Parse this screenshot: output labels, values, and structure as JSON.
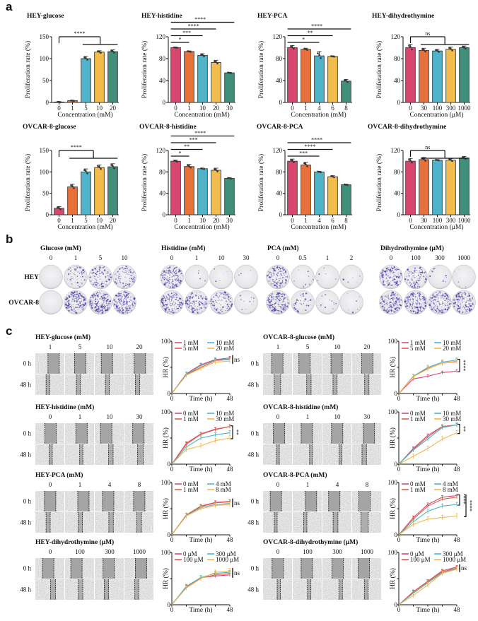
{
  "panel_labels": [
    "a",
    "b",
    "c"
  ],
  "colors": {
    "bars": [
      "#d9476f",
      "#e8703a",
      "#4fb3c9",
      "#f2bd4c",
      "#3f8f7a"
    ],
    "lines": [
      "#d6487a",
      "#e0603c",
      "#4db3c9",
      "#f1b84a"
    ],
    "stain": "#4b3fae"
  },
  "chart_data": [
    {
      "type": "bar",
      "title": "HEY-glucose",
      "xlabel": "Concentration (mM)",
      "ylabel": "Proliferation rate (%)",
      "categories": [
        "0",
        "1",
        "5",
        "10",
        "20"
      ],
      "values": [
        1,
        4,
        100,
        115,
        116
      ],
      "errors": [
        1,
        1,
        5,
        3,
        4
      ],
      "ylim": [
        0,
        150
      ],
      "yticks": [
        "0",
        "50",
        "100",
        "150"
      ],
      "comparison": {
        "type": "bracket",
        "control": 0,
        "group": [
          2,
          4
        ],
        "label": "****"
      }
    },
    {
      "type": "bar",
      "title": "HEY-histidine",
      "xlabel": "Concentration (mM)",
      "ylabel": "Proliferation rate (%)",
      "categories": [
        "0",
        "1",
        "10",
        "20",
        "30"
      ],
      "values": [
        100,
        93,
        86,
        73,
        54
      ],
      "errors": [
        1,
        1,
        3,
        4,
        1
      ],
      "ylim": [
        0,
        120
      ],
      "yticks": [
        "0",
        "40",
        "80",
        "120"
      ],
      "comparison": {
        "type": "pairwise",
        "pairs": [
          {
            "to": 1,
            "label": "*"
          },
          {
            "to": 2,
            "label": "***"
          },
          {
            "to": 3,
            "label": "****"
          },
          {
            "to": 4,
            "label": "****"
          }
        ]
      }
    },
    {
      "type": "bar",
      "title": "HEY-PCA",
      "xlabel": "Concentration (mM)",
      "ylabel": "Proliferation rate (%)",
      "categories": [
        "0",
        "1",
        "4",
        "6",
        "8"
      ],
      "values": [
        100,
        97,
        85,
        84,
        39
      ],
      "errors": [
        4,
        2,
        8,
        1,
        3
      ],
      "ylim": [
        0,
        120
      ],
      "yticks": [
        "0",
        "40",
        "80",
        "120"
      ],
      "comparison": {
        "type": "pairwise",
        "pairs": [
          {
            "to": 2,
            "label": "*"
          },
          {
            "to": 3,
            "label": "**"
          },
          {
            "to": 4,
            "label": "****"
          }
        ]
      }
    },
    {
      "type": "bar",
      "title": "HEY-dihydrothymine",
      "xlabel": "Concentration (μM)",
      "ylabel": "Proliferation rate (%)",
      "categories": [
        "0",
        "30",
        "100",
        "300",
        "1000"
      ],
      "values": [
        100,
        95,
        94,
        97,
        100
      ],
      "errors": [
        6,
        4,
        3,
        4,
        3
      ],
      "ylim": [
        0,
        120
      ],
      "yticks": [
        "0",
        "40",
        "80",
        "120"
      ],
      "comparison": {
        "type": "bracket",
        "control": 0,
        "group": [
          1,
          4
        ],
        "label": "ns"
      }
    },
    {
      "type": "bar",
      "title": "OVCAR-8-glucose",
      "xlabel": "Concentration (mM)",
      "ylabel": "Proliferation rate (%)",
      "categories": [
        "0",
        "1",
        "5",
        "10",
        "20"
      ],
      "values": [
        15,
        65,
        100,
        110,
        112
      ],
      "errors": [
        4,
        6,
        7,
        6,
        7
      ],
      "ylim": [
        0,
        150
      ],
      "yticks": [
        "0",
        "50",
        "100",
        "150"
      ],
      "comparison": {
        "type": "bracket",
        "control": 0,
        "group": [
          1,
          4
        ],
        "label": "****"
      }
    },
    {
      "type": "bar",
      "title": "OVCAR-8-histidine",
      "xlabel": "Concentration (mM)",
      "ylabel": "Proliferation rate (%)",
      "categories": [
        "0",
        "1",
        "10",
        "20",
        "30"
      ],
      "values": [
        100,
        90,
        86,
        83,
        68
      ],
      "errors": [
        2,
        4,
        1,
        4,
        1
      ],
      "ylim": [
        0,
        120
      ],
      "yticks": [
        "0",
        "40",
        "80",
        "120"
      ],
      "comparison": {
        "type": "pairwise",
        "pairs": [
          {
            "to": 1,
            "label": "*"
          },
          {
            "to": 2,
            "label": "**"
          },
          {
            "to": 3,
            "label": "***"
          },
          {
            "to": 4,
            "label": "****"
          }
        ]
      }
    },
    {
      "type": "bar",
      "title": "OVCAR-8-PCA",
      "xlabel": "Concentration (mM)",
      "ylabel": "Proliferation rate (%)",
      "categories": [
        "0",
        "1",
        "4",
        "6",
        "8"
      ],
      "values": [
        100,
        93,
        80,
        71,
        56
      ],
      "errors": [
        4,
        5,
        1,
        2,
        1
      ],
      "ylim": [
        0,
        120
      ],
      "yticks": [
        "0",
        "40",
        "80",
        "120"
      ],
      "comparison": {
        "type": "pairwise",
        "pairs": [
          {
            "to": 2,
            "label": "***"
          },
          {
            "to": 3,
            "label": "****"
          },
          {
            "to": 4,
            "label": "****"
          }
        ]
      }
    },
    {
      "type": "bar",
      "title": "OVCAR-8-dihydrothymine",
      "xlabel": "Concentration (μM)",
      "ylabel": "Proliferation rate (%)",
      "categories": [
        "0",
        "30",
        "100",
        "300",
        "1000"
      ],
      "values": [
        100,
        103,
        102,
        102,
        106
      ],
      "errors": [
        5,
        4,
        1,
        3,
        3
      ],
      "ylim": [
        0,
        120
      ],
      "yticks": [
        "0",
        "40",
        "80",
        "120"
      ],
      "comparison": {
        "type": "bracket",
        "control": 0,
        "group": [
          1,
          4
        ],
        "label": "ns"
      }
    },
    {
      "type": "line",
      "xlabel": "Time (h)",
      "ylabel": "HR (%)",
      "x": [
        0,
        12,
        24,
        36,
        48
      ],
      "xticks": [
        "0",
        "48"
      ],
      "yticks": [
        "0",
        "100"
      ],
      "ylim": [
        0,
        100
      ],
      "series": [
        {
          "name": "1 mM",
          "values": [
            0,
            38,
            55,
            65,
            68
          ]
        },
        {
          "name": "5 mM",
          "values": [
            0,
            36,
            50,
            63,
            65
          ]
        },
        {
          "name": "10 mM",
          "values": [
            0,
            37,
            53,
            64,
            66
          ]
        },
        {
          "name": "20 mM",
          "values": [
            0,
            35,
            48,
            60,
            62
          ]
        }
      ],
      "significance": [
        {
          "series": [
            0,
            3
          ],
          "label": "ns",
          "style": "bar"
        }
      ]
    },
    {
      "type": "line",
      "xlabel": "Time (h)",
      "ylabel": "HR (%)",
      "x": [
        0,
        12,
        24,
        36,
        48
      ],
      "xticks": [
        "0",
        "48"
      ],
      "yticks": [
        "0",
        "100"
      ],
      "ylim": [
        0,
        100
      ],
      "series": [
        {
          "name": "1 mM",
          "values": [
            0,
            28,
            33,
            40,
            43
          ]
        },
        {
          "name": "5 mM",
          "values": [
            0,
            33,
            48,
            58,
            61
          ]
        },
        {
          "name": "10 mM",
          "values": [
            0,
            33,
            50,
            60,
            64
          ]
        },
        {
          "name": "20 mM",
          "values": [
            0,
            32,
            47,
            58,
            62
          ]
        }
      ],
      "significance": [
        {
          "series": [
            2,
            0
          ],
          "label": "****",
          "style": "bracket"
        }
      ]
    },
    {
      "type": "line",
      "xlabel": "Time (h)",
      "ylabel": "HR (%)",
      "x": [
        0,
        12,
        24,
        36,
        48
      ],
      "xticks": [
        "0",
        "48"
      ],
      "yticks": [
        "0",
        "100"
      ],
      "ylim": [
        0,
        100
      ],
      "series": [
        {
          "name": "0 mM",
          "values": [
            0,
            40,
            58,
            67,
            72
          ]
        },
        {
          "name": "1 mM",
          "values": [
            0,
            38,
            57,
            66,
            72
          ]
        },
        {
          "name": "10 mM",
          "values": [
            0,
            33,
            50,
            56,
            60
          ]
        },
        {
          "name": "30 mM",
          "values": [
            0,
            28,
            35,
            45,
            50
          ]
        }
      ],
      "significance": [
        {
          "series": [
            0,
            3
          ],
          "label": "**",
          "style": "bracket"
        }
      ]
    },
    {
      "type": "line",
      "xlabel": "Time (h)",
      "ylabel": "HR (%)",
      "x": [
        0,
        12,
        24,
        36,
        48
      ],
      "xticks": [
        "0",
        "48"
      ],
      "yticks": [
        "0",
        "100"
      ],
      "ylim": [
        0,
        100
      ],
      "series": [
        {
          "name": "0 mM",
          "values": [
            0,
            30,
            55,
            72,
            75
          ]
        },
        {
          "name": "1 mM",
          "values": [
            0,
            28,
            52,
            72,
            75
          ]
        },
        {
          "name": "10 mM",
          "values": [
            0,
            27,
            48,
            70,
            75
          ]
        },
        {
          "name": "30 mM",
          "values": [
            0,
            15,
            30,
            48,
            60
          ]
        }
      ],
      "significance": [
        {
          "series": [
            0,
            3
          ],
          "label": "**",
          "style": "bracket"
        }
      ]
    },
    {
      "type": "line",
      "xlabel": "Time (h)",
      "ylabel": "HR (%)",
      "x": [
        0,
        12,
        24,
        36,
        48
      ],
      "xticks": [
        "0",
        "48"
      ],
      "yticks": [
        "0",
        "100"
      ],
      "ylim": [
        0,
        100
      ],
      "series": [
        {
          "name": "0 mM",
          "values": [
            0,
            38,
            55,
            62,
            64
          ]
        },
        {
          "name": "1 mM",
          "values": [
            0,
            38,
            54,
            61,
            63
          ]
        },
        {
          "name": "4 mM",
          "values": [
            0,
            37,
            52,
            58,
            60
          ]
        },
        {
          "name": "8 mM",
          "values": [
            0,
            36,
            50,
            56,
            58
          ]
        }
      ],
      "significance": [
        {
          "series": [
            0,
            3
          ],
          "label": "ns",
          "style": "bar"
        }
      ]
    },
    {
      "type": "line",
      "xlabel": "Time (h)",
      "ylabel": "HR (%)",
      "x": [
        0,
        12,
        24,
        36,
        48
      ],
      "xticks": [
        "0",
        "48"
      ],
      "yticks": [
        "0",
        "100"
      ],
      "ylim": [
        0,
        100
      ],
      "series": [
        {
          "name": "0 mM",
          "values": [
            0,
            33,
            58,
            72,
            75
          ]
        },
        {
          "name": "1 mM",
          "values": [
            0,
            30,
            55,
            68,
            72
          ]
        },
        {
          "name": "4 mM",
          "values": [
            0,
            25,
            45,
            55,
            58
          ]
        },
        {
          "name": "8 mM",
          "values": [
            0,
            20,
            30,
            33,
            36
          ]
        }
      ],
      "significance": [
        {
          "series": [
            0,
            2
          ],
          "label": "***",
          "style": "bracket"
        },
        {
          "series": [
            0,
            3
          ],
          "label": "****",
          "style": "bracket"
        }
      ]
    },
    {
      "type": "line",
      "xlabel": "Time (h)",
      "ylabel": "HR (%)",
      "x": [
        0,
        12,
        24,
        36,
        48
      ],
      "xticks": [
        "0",
        "48"
      ],
      "yticks": [
        "0",
        "100"
      ],
      "ylim": [
        0,
        100
      ],
      "series": [
        {
          "name": "0 μM",
          "values": [
            0,
            35,
            52,
            55,
            57
          ]
        },
        {
          "name": "100 μM",
          "values": [
            0,
            34,
            51,
            57,
            60
          ]
        },
        {
          "name": "300 μM",
          "values": [
            0,
            35,
            52,
            60,
            62
          ]
        },
        {
          "name": "1000 μM",
          "values": [
            0,
            32,
            50,
            62,
            65
          ]
        }
      ],
      "significance": [
        {
          "series": [
            3,
            0
          ],
          "label": "ns",
          "style": "bar"
        }
      ]
    },
    {
      "type": "line",
      "xlabel": "Time (h)",
      "ylabel": "HR (%)",
      "x": [
        0,
        12,
        24,
        36,
        48
      ],
      "xticks": [
        "0",
        "48"
      ],
      "yticks": [
        "0",
        "100"
      ],
      "ylim": [
        0,
        100
      ],
      "series": [
        {
          "name": "0 μM",
          "values": [
            0,
            25,
            45,
            65,
            72
          ]
        },
        {
          "name": "100 μM",
          "values": [
            0,
            24,
            44,
            63,
            70
          ]
        },
        {
          "name": "300 μM",
          "values": [
            0,
            22,
            42,
            61,
            69
          ]
        },
        {
          "name": "1000 μM",
          "values": [
            0,
            18,
            38,
            60,
            68
          ]
        }
      ],
      "significance": [
        {
          "series": [
            0,
            3
          ],
          "label": "ns",
          "style": "bar"
        }
      ]
    }
  ],
  "colony_assay": {
    "row_labels": [
      "HEY",
      "OVCAR-8"
    ],
    "groups": [
      {
        "title": "Glucose (mM)",
        "concentrations": [
          "0",
          "1",
          "5",
          "10"
        ],
        "colony_density": [
          [
            0,
            0.25,
            0.35,
            0.3
          ],
          [
            0,
            0.7,
            0.75,
            0.75
          ]
        ]
      },
      {
        "title": "Histidine (mM)",
        "concentrations": [
          "0",
          "1",
          "10",
          "30"
        ],
        "colony_density": [
          [
            0.6,
            0.02,
            0.02,
            0.01
          ],
          [
            0.6,
            0.5,
            0.35,
            0.05
          ]
        ]
      },
      {
        "title": "PCA (mM)",
        "concentrations": [
          "0",
          "0.5",
          "1",
          "2"
        ],
        "colony_density": [
          [
            0.55,
            0.05,
            0.02,
            0.02
          ],
          [
            0.75,
            0.2,
            0.05,
            0.03
          ]
        ]
      },
      {
        "title": "Dihydrothymine (μM)",
        "concentrations": [
          "0",
          "100",
          "300",
          "1000"
        ],
        "colony_density": [
          [
            0.55,
            0.35,
            0.05,
            0.02
          ],
          [
            0.7,
            0.65,
            0.55,
            0.6
          ]
        ]
      }
    ]
  },
  "scratch_assay": {
    "time_labels": [
      "0 h",
      "48 h"
    ],
    "panels": [
      {
        "title": "HEY-glucose (mM)",
        "concentrations": [
          "1",
          "5",
          "10",
          "20"
        ]
      },
      {
        "title": "OVCAR-8-glucose (mM)",
        "concentrations": [
          "1",
          "5",
          "10",
          "20"
        ]
      },
      {
        "title": "HEY-histidine (mM)",
        "concentrations": [
          "0",
          "1",
          "10",
          "30"
        ]
      },
      {
        "title": "OVCAR-8-histidine (mM)",
        "concentrations": [
          "0",
          "1",
          "10",
          "30"
        ]
      },
      {
        "title": "HEY-PCA (mM)",
        "concentrations": [
          "0",
          "1",
          "4",
          "8"
        ]
      },
      {
        "title": "OVCAR-8-PCA (mM)",
        "concentrations": [
          "0",
          "1",
          "4",
          "8"
        ]
      },
      {
        "title": "HEY-dihydrothymine (μM)",
        "concentrations": [
          "0",
          "100",
          "300",
          "1000"
        ]
      },
      {
        "title": "OVCAR-8-dihydrothymine (μM)",
        "concentrations": [
          "0",
          "100",
          "300",
          "1000"
        ]
      }
    ]
  }
}
